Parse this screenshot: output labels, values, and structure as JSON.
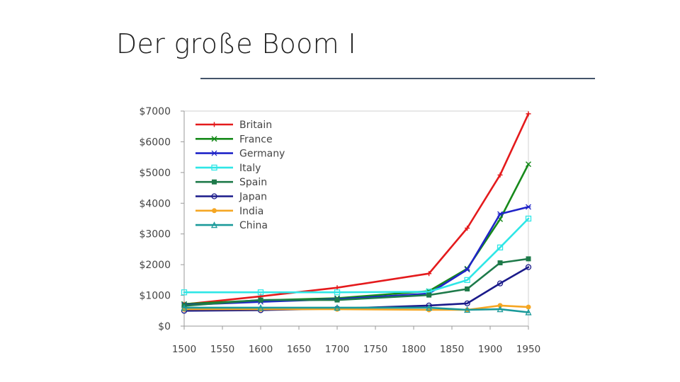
{
  "slide": {
    "title": "Der große Boom I"
  },
  "chart_data": {
    "type": "line",
    "x_ticks": [
      1500,
      1550,
      1600,
      1650,
      1700,
      1750,
      1800,
      1850,
      1900,
      1950
    ],
    "y_ticks": [
      "$0",
      "$1000",
      "$2000",
      "$3000",
      "$4000",
      "$5000",
      "$6000",
      "$7000"
    ],
    "y_tick_values": [
      0,
      1000,
      2000,
      3000,
      4000,
      5000,
      6000,
      7000
    ],
    "xlim": [
      1500,
      1950
    ],
    "ylim": [
      0,
      7000
    ],
    "grid": false,
    "legend_position": "top-left",
    "series": [
      {
        "name": "Britain",
        "color": "#e41a1c",
        "marker": "plus",
        "x": [
          1500,
          1600,
          1700,
          1820,
          1870,
          1913,
          1950
        ],
        "y": [
          710,
          970,
          1250,
          1710,
          3190,
          4920,
          6910
        ]
      },
      {
        "name": "France",
        "color": "#178a1b",
        "marker": "x",
        "x": [
          1500,
          1600,
          1700,
          1820,
          1870,
          1913,
          1950
        ],
        "y": [
          720,
          840,
          910,
          1140,
          1870,
          3480,
          5270
        ]
      },
      {
        "name": "Germany",
        "color": "#1f24c8",
        "marker": "star",
        "x": [
          1500,
          1600,
          1700,
          1820,
          1870,
          1913,
          1950
        ],
        "y": [
          690,
          790,
          880,
          1060,
          1840,
          3650,
          3880
        ]
      },
      {
        "name": "Italy",
        "color": "#2ee6e6",
        "marker": "square-open",
        "x": [
          1500,
          1600,
          1700,
          1820,
          1870,
          1913,
          1950
        ],
        "y": [
          1100,
          1100,
          1100,
          1120,
          1500,
          2560,
          3500
        ]
      },
      {
        "name": "Spain",
        "color": "#1e7a4a",
        "marker": "square",
        "x": [
          1500,
          1600,
          1700,
          1820,
          1870,
          1913,
          1950
        ],
        "y": [
          660,
          850,
          850,
          1010,
          1210,
          2060,
          2190
        ]
      },
      {
        "name": "Japan",
        "color": "#1a1a8a",
        "marker": "circle-open",
        "x": [
          1500,
          1600,
          1700,
          1820,
          1870,
          1913,
          1950
        ],
        "y": [
          500,
          520,
          570,
          670,
          740,
          1390,
          1920
        ]
      },
      {
        "name": "India",
        "color": "#f5a623",
        "marker": "circle",
        "x": [
          1500,
          1600,
          1700,
          1820,
          1870,
          1913,
          1950
        ],
        "y": [
          550,
          550,
          550,
          530,
          530,
          670,
          620
        ]
      },
      {
        "name": "China",
        "color": "#1a9a9a",
        "marker": "triangle",
        "x": [
          1500,
          1600,
          1700,
          1820,
          1870,
          1913,
          1950
        ],
        "y": [
          600,
          600,
          600,
          600,
          530,
          550,
          450
        ]
      }
    ]
  }
}
